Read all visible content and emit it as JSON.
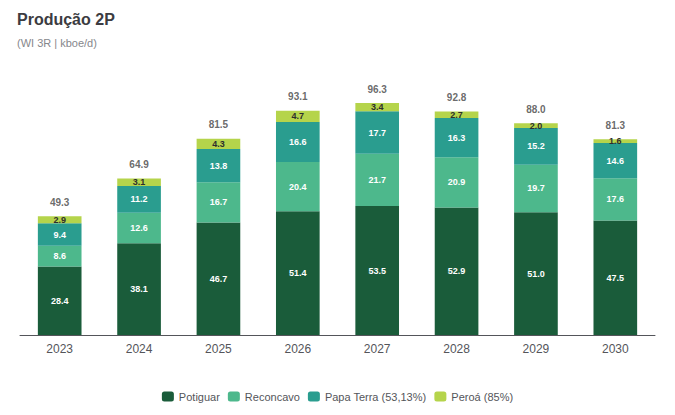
{
  "chart_data": {
    "type": "bar",
    "title": "Produção 2P",
    "subtitle": "(WI 3R | kboe/d)",
    "categories": [
      "2023",
      "2024",
      "2025",
      "2026",
      "2027",
      "2028",
      "2029",
      "2030"
    ],
    "stacked": true,
    "data_labels": true,
    "grid": false,
    "tick_labels": "x",
    "legend": "bottom",
    "ylim": [
      0,
      110
    ],
    "series": [
      {
        "name": "Potiguar",
        "color": "#1a5c3a",
        "values": [
          28.4,
          38.1,
          46.7,
          51.4,
          53.5,
          52.9,
          51.0,
          47.5
        ],
        "value_labels": [
          "28.4",
          "38.1",
          "46.7",
          "51.4",
          "53.5",
          "52.9",
          "51.0",
          "47.5"
        ]
      },
      {
        "name": "Reconcavo",
        "color": "#4db88c",
        "values": [
          8.6,
          12.6,
          16.7,
          20.4,
          21.7,
          20.9,
          19.7,
          17.6
        ],
        "value_labels": [
          "8.6",
          "12.6",
          "16.7",
          "20.4",
          "21.7",
          "20.9",
          "19.7",
          "17.6"
        ]
      },
      {
        "name": "Papa Terra (53,13%)",
        "color": "#2a9d8f",
        "values": [
          9.4,
          11.2,
          13.8,
          16.6,
          17.7,
          16.3,
          15.2,
          14.6
        ],
        "value_labels": [
          "9.4",
          "11.2",
          "13.8",
          "16.6",
          "17.7",
          "16.3",
          "15.2",
          "14.6"
        ]
      },
      {
        "name": "Peroá (85%)",
        "color": "#b5d44b",
        "values": [
          2.9,
          3.1,
          4.3,
          4.7,
          3.4,
          2.7,
          2.0,
          1.6
        ],
        "value_labels": [
          "2.9",
          "3.1",
          "4.3",
          "4.7",
          "3.4",
          "2.7",
          "2.0",
          "1.6"
        ]
      }
    ],
    "totals": [
      49.3,
      64.9,
      81.5,
      93.1,
      96.3,
      92.8,
      88.0,
      81.3
    ],
    "total_labels": [
      "49.3",
      "64.9",
      "81.5",
      "93.1",
      "96.3",
      "92.8",
      "88.0",
      "81.3"
    ]
  }
}
